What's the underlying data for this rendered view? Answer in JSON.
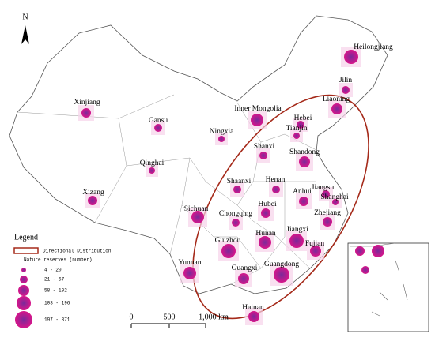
{
  "north": "N",
  "provinces": [
    "Heilongjiang",
    "Jilin",
    "Liaoning",
    "Inner Mongolia",
    "Hebei",
    "Tianjin",
    "Xinjiang",
    "Gansu",
    "Ningxia",
    "Shanxi",
    "Shandong",
    "Qinghai",
    "Shaanxi",
    "Henan",
    "Jiangsu",
    "Shanghai",
    "Anhui",
    "Xizang",
    "Sichuan",
    "Zhejiang",
    "Chongqing",
    "Hubei",
    "Hunan",
    "Jiangxi",
    "Fujian",
    "Guizhou",
    "Guangxi",
    "Yunnan",
    "Guangdong",
    "Hainan"
  ],
  "legend": {
    "title": "Legend",
    "ellipse_label": "Directional Distribution",
    "size_title": "Nature reserves (number)",
    "classes": [
      "4 - 20",
      "21 - 57",
      "58 - 102",
      "103 - 196",
      "197 - 371"
    ]
  },
  "scale_bar": [
    "0",
    "500",
    "1,000 km"
  ]
}
